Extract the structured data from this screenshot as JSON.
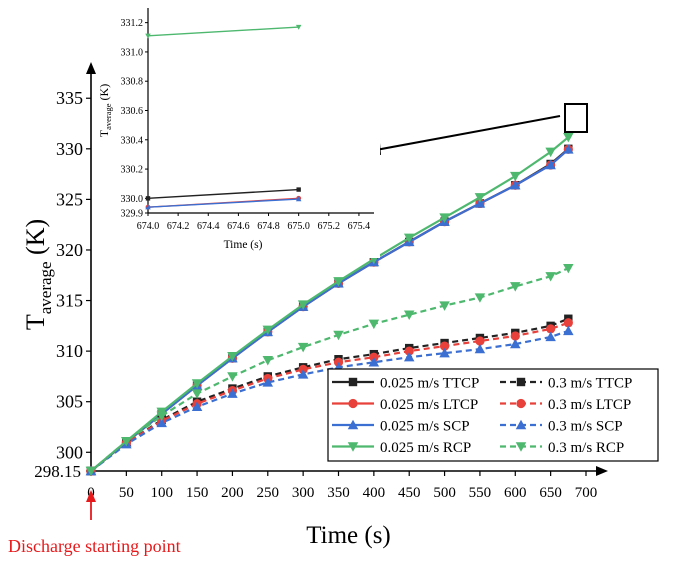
{
  "chart_data": [
    {
      "type": "line",
      "xlabel": "Time (s)",
      "ylabel_main": "T",
      "ylabel_sub": "average",
      "ylabel_unit": " (K)",
      "xlim": [
        0,
        700
      ],
      "ylim": [
        298.15,
        337
      ],
      "xticks": [
        0,
        50,
        100,
        150,
        200,
        250,
        300,
        350,
        400,
        450,
        500,
        550,
        600,
        650,
        700
      ],
      "yticks": [
        298.15,
        300,
        305,
        310,
        315,
        320,
        325,
        330,
        335
      ],
      "ytick_labels": [
        "298.15",
        "300",
        "305",
        "310",
        "315",
        "320",
        "325",
        "330",
        "335"
      ],
      "x": [
        0,
        50,
        100,
        150,
        200,
        250,
        300,
        350,
        400,
        450,
        500,
        550,
        600,
        650,
        675
      ],
      "annotation": "Discharge starting point",
      "annotation_color": "#e8191b",
      "legend_placement": "bottom-right",
      "series": [
        {
          "name": "0.025 m/s TTCP",
          "color": "#222222",
          "marker": "square",
          "dash": false,
          "values": [
            298.15,
            301.0,
            303.8,
            306.6,
            309.3,
            311.9,
            314.4,
            316.7,
            318.8,
            320.8,
            322.8,
            324.6,
            326.4,
            328.5,
            330.0
          ]
        },
        {
          "name": "0.025 m/s LTCP",
          "color": "#e8403a",
          "marker": "circle",
          "dash": false,
          "values": [
            298.15,
            301.0,
            303.8,
            306.6,
            309.3,
            311.9,
            314.4,
            316.7,
            318.8,
            320.8,
            322.8,
            324.6,
            326.4,
            328.4,
            329.95
          ]
        },
        {
          "name": "0.025 m/s SCP",
          "color": "#3b6fd1",
          "marker": "triangle-up",
          "dash": false,
          "values": [
            298.15,
            301.0,
            303.8,
            306.6,
            309.3,
            311.9,
            314.4,
            316.7,
            318.8,
            320.8,
            322.8,
            324.6,
            326.4,
            328.4,
            329.94
          ]
        },
        {
          "name": "0.025 m/s RCP",
          "color": "#4db86e",
          "marker": "triangle-down",
          "dash": false,
          "values": [
            298.15,
            301.1,
            304.0,
            306.8,
            309.5,
            312.1,
            314.6,
            316.9,
            319.1,
            321.2,
            323.2,
            325.2,
            327.3,
            329.7,
            331.15
          ]
        },
        {
          "name": "0.3 m/s TTCP",
          "color": "#222222",
          "marker": "square",
          "dash": true,
          "values": [
            298.15,
            300.9,
            303.2,
            305.0,
            306.3,
            307.5,
            308.4,
            309.2,
            309.7,
            310.3,
            310.8,
            311.3,
            311.8,
            312.5,
            313.2
          ]
        },
        {
          "name": "0.3 m/s LTCP",
          "color": "#e8403a",
          "marker": "circle",
          "dash": true,
          "values": [
            298.15,
            300.9,
            303.1,
            304.8,
            306.1,
            307.3,
            308.2,
            308.9,
            309.4,
            310.0,
            310.5,
            311.0,
            311.5,
            312.2,
            312.8
          ]
        },
        {
          "name": "0.3 m/s SCP",
          "color": "#3b6fd1",
          "marker": "triangle-up",
          "dash": true,
          "values": [
            298.15,
            300.8,
            302.9,
            304.5,
            305.8,
            306.9,
            307.7,
            308.4,
            308.9,
            309.4,
            309.8,
            310.2,
            310.7,
            311.4,
            312.0
          ]
        },
        {
          "name": "0.3 m/s RCP",
          "color": "#4db86e",
          "marker": "triangle-down",
          "dash": true,
          "values": [
            298.15,
            301.1,
            303.6,
            305.8,
            307.5,
            309.1,
            310.4,
            311.6,
            312.7,
            313.6,
            314.5,
            315.3,
            316.4,
            317.4,
            318.2
          ]
        }
      ]
    },
    {
      "type": "line",
      "role": "inset",
      "xlabel": "Time (s)",
      "ylabel_main": "T",
      "ylabel_sub": "average",
      "ylabel_unit": " (K)",
      "xlim": [
        674.0,
        675.5
      ],
      "ylim": [
        329.9,
        331.3
      ],
      "xticks": [
        674.0,
        674.2,
        674.4,
        674.6,
        674.8,
        675.0,
        675.2,
        675.4
      ],
      "xtick_labels": [
        "674.0",
        "674.2",
        "674.4",
        "674.6",
        "674.8",
        "675.0",
        "675.2",
        "675.4"
      ],
      "yticks": [
        329.9,
        330.0,
        330.2,
        330.4,
        330.6,
        330.8,
        331.0,
        331.2
      ],
      "ytick_labels": [
        "329.9",
        "330.0",
        "330.2",
        "330.4",
        "330.6",
        "330.8",
        "331.0",
        "331.2"
      ],
      "x": [
        674.0,
        675.0
      ],
      "series": [
        {
          "name": "0.025 m/s TTCP",
          "color": "#222222",
          "marker": "square",
          "values": [
            330.0,
            330.06
          ]
        },
        {
          "name": "0.025 m/s LTCP",
          "color": "#e8403a",
          "marker": "circle",
          "values": [
            329.94,
            330.0
          ]
        },
        {
          "name": "0.025 m/s SCP",
          "color": "#3b6fd1",
          "marker": "triangle-up",
          "values": [
            329.94,
            329.995
          ]
        },
        {
          "name": "0.025 m/s RCP",
          "color": "#4db86e",
          "marker": "triangle-down",
          "values": [
            331.11,
            331.17
          ]
        }
      ]
    }
  ]
}
